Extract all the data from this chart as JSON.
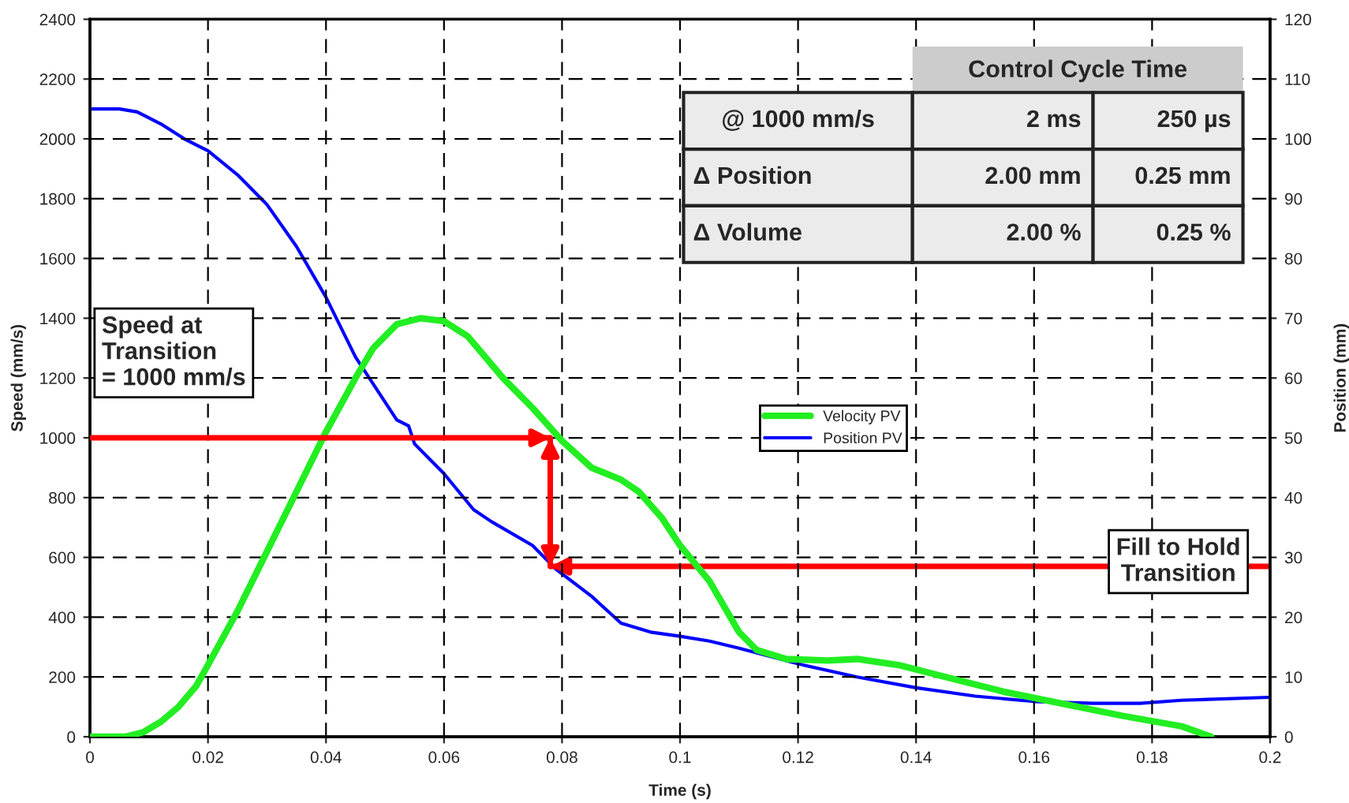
{
  "chart_data": {
    "type": "line",
    "xlabel": "Time (s)",
    "ylabel": "Speed (mm/s)",
    "y2label": "Position (mm)",
    "x": [
      0,
      0.006,
      0.009,
      0.012,
      0.015,
      0.018,
      0.02,
      0.025,
      0.03,
      0.035,
      0.04,
      0.045,
      0.048,
      0.052,
      0.056,
      0.06,
      0.064,
      0.07,
      0.075,
      0.08,
      0.085,
      0.09,
      0.093,
      0.097,
      0.1,
      0.105,
      0.11,
      0.113,
      0.118,
      0.125,
      0.13,
      0.137,
      0.145,
      0.155,
      0.165,
      0.175,
      0.185,
      0.19
    ],
    "series": [
      {
        "name": "Velocity PV",
        "color": "#22ee22",
        "values": [
          0,
          0,
          15,
          50,
          100,
          170,
          240,
          420,
          620,
          820,
          1020,
          1200,
          1300,
          1380,
          1400,
          1390,
          1340,
          1200,
          1100,
          990,
          900,
          860,
          820,
          730,
          640,
          520,
          350,
          290,
          260,
          255,
          260,
          240,
          200,
          150,
          110,
          70,
          35,
          0
        ]
      },
      {
        "name": "Position PV",
        "color": "#0000ff",
        "axis": "y2",
        "x": [
          0,
          0.005,
          0.008,
          0.012,
          0.016,
          0.02,
          0.025,
          0.03,
          0.035,
          0.04,
          0.045,
          0.05,
          0.052,
          0.054,
          0.055,
          0.06,
          0.065,
          0.068,
          0.075,
          0.079,
          0.085,
          0.09,
          0.095,
          0.1,
          0.105,
          0.11,
          0.12,
          0.13,
          0.14,
          0.15,
          0.16,
          0.17,
          0.178,
          0.185,
          0.2
        ],
        "values": [
          105,
          105,
          104.5,
          102.5,
          100,
          98,
          94,
          89,
          82,
          73.5,
          63.5,
          56,
          53,
          52,
          49,
          44,
          38,
          36,
          32,
          28,
          23.5,
          19,
          17.5,
          16.8,
          16,
          14.8,
          12.2,
          10,
          8.2,
          6.8,
          5.9,
          5.6,
          5.6,
          6.1,
          6.6
        ]
      }
    ],
    "xlim": [
      0,
      0.2
    ],
    "xticks": [
      0,
      0.02,
      0.04,
      0.06,
      0.08,
      0.1,
      0.12,
      0.14,
      0.16,
      0.18,
      0.2
    ],
    "ylim": [
      0,
      2400
    ],
    "yticks": [
      0,
      200,
      400,
      600,
      800,
      1000,
      1200,
      1400,
      1600,
      1800,
      2000,
      2200,
      2400
    ],
    "y2lim": [
      0,
      120
    ],
    "y2ticks": [
      0,
      10,
      20,
      30,
      40,
      50,
      60,
      70,
      80,
      90,
      100,
      110,
      120
    ],
    "ref_lines": [
      {
        "axis": "y",
        "value": 1000,
        "label": "Speed at\nTransition\n= 1000 mm/s",
        "color": "#ff0000"
      },
      {
        "axis": "y2",
        "value": 28.5,
        "label": "Fill to Hold\nTransition",
        "color": "#ff0000"
      },
      {
        "axis": "x",
        "value": 0.078,
        "color": "#ff0000"
      }
    ],
    "annotations": [
      "Control Cycle Time",
      "@ 1000 mm/s",
      "2 ms",
      "250 µs",
      "Δ Position",
      "2.00 mm",
      "0.25 mm",
      "Δ Volume",
      "2.00 %",
      "0.25 %"
    ],
    "grid": true,
    "legend": "center",
    "line_style": "solid",
    "marker": "none"
  }
}
